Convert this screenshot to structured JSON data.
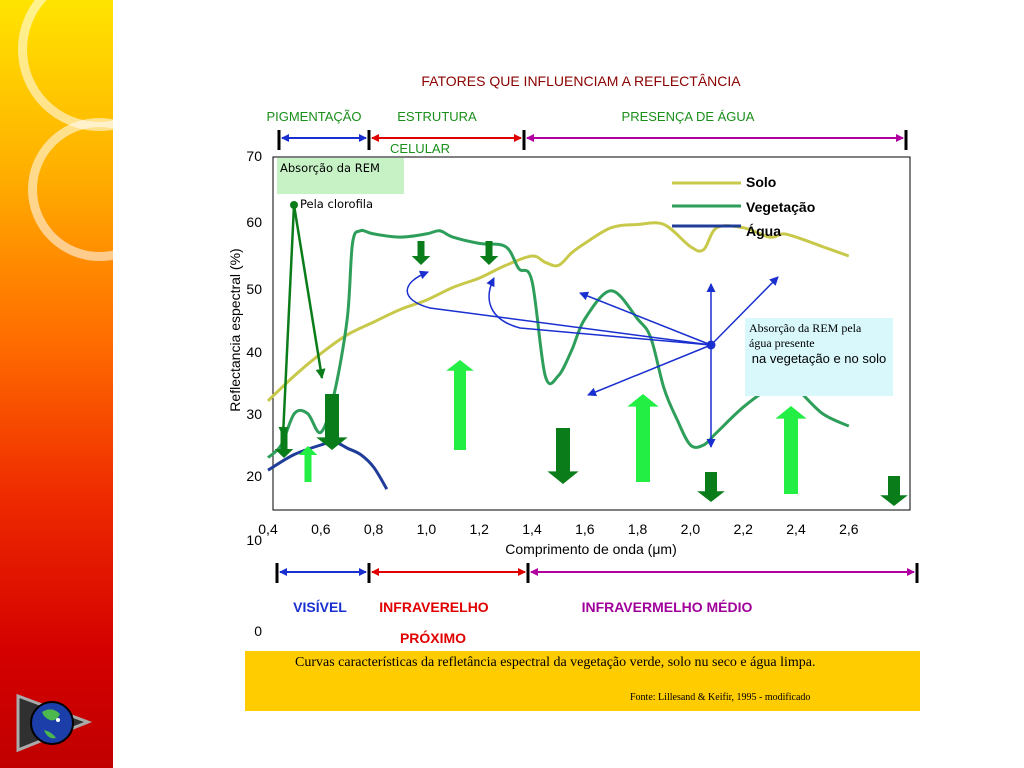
{
  "slide": {
    "title": "FATORES QUE INFLUENCIAM A REFLECTÂNCIA",
    "factors": {
      "pigmentation": "PIGMENTAÇÃO",
      "structure_line1": "ESTRUTURA",
      "structure_line2": "CELULAR",
      "water": "PRESENÇA DE ÁGUA"
    },
    "regions": {
      "visible": "VISÍVEL",
      "nir_line1": "INFRAVERELHO",
      "nir_line2": "PRÓXIMO",
      "mir": "INFRAVERMELHO MÉDIO"
    },
    "annotations": {
      "chlorophyll_line1": "Absorção da REM",
      "chlorophyll_line2": "Pela clorofila",
      "water_line1": "Absorção da REM  pela",
      "water_line2": "água presente",
      "water_line3": "na vegetação e no solo"
    },
    "caption": "Curvas características da refletância espectral da vegetação verde, solo nu seco e água limpa.",
    "source": "Fonte: Lillesand & Keifir, 1995 - modificado",
    "colors": {
      "soil": "#c8c84a",
      "vegetation": "#2e9e5b",
      "water": "#1f3c99",
      "visible": "#1a2fd0",
      "nir": "#e00000",
      "mir": "#b000a0",
      "arrow_dark": "#0a7d1a",
      "arrow_light": "#22ee44"
    }
  },
  "chart_data": {
    "type": "line",
    "title": "",
    "xlabel": "Comprimento de onda (μm)",
    "ylabel": "Reflectancia espectral (%)",
    "x_ticks": [
      "0,4",
      "0,6",
      "0,8",
      "1,0",
      "1,2",
      "1,4",
      "1,6",
      "1,8",
      "2,0",
      "2,2",
      "2,4",
      "2,6"
    ],
    "y_ticks": [
      "0",
      "10",
      "20",
      "30",
      "40",
      "50",
      "60",
      "70"
    ],
    "xlim": [
      0.4,
      2.6
    ],
    "ylim": [
      0,
      70
    ],
    "series": [
      {
        "name": "Solo",
        "x": [
          0.4,
          0.5,
          0.6,
          0.7,
          0.8,
          0.9,
          1.0,
          1.1,
          1.2,
          1.3,
          1.4,
          1.45,
          1.5,
          1.55,
          1.6,
          1.7,
          1.8,
          1.9,
          2.0,
          2.05,
          2.1,
          2.2,
          2.3,
          2.35,
          2.4,
          2.5,
          2.6
        ],
        "y": [
          27,
          31,
          34.5,
          37.5,
          39.5,
          41.5,
          43,
          45,
          46.5,
          48.5,
          50,
          49,
          48.5,
          50.5,
          52,
          54.5,
          55,
          55,
          51.5,
          51,
          54.5,
          54.5,
          53,
          53.5,
          53,
          51.5,
          50
        ]
      },
      {
        "name": "Vegetação",
        "x": [
          0.4,
          0.45,
          0.5,
          0.55,
          0.6,
          0.65,
          0.7,
          0.72,
          0.75,
          0.8,
          0.9,
          1.0,
          1.05,
          1.1,
          1.2,
          1.3,
          1.35,
          1.4,
          1.45,
          1.5,
          1.55,
          1.6,
          1.7,
          1.8,
          1.85,
          1.9,
          1.95,
          2.0,
          2.05,
          2.1,
          2.2,
          2.3,
          2.35,
          2.4,
          2.5,
          2.6
        ],
        "y": [
          18,
          20,
          25,
          25,
          22,
          28,
          40,
          52,
          54,
          53.5,
          53,
          53.5,
          54,
          53,
          52,
          51.5,
          48,
          46,
          31,
          31,
          35,
          40,
          44.5,
          40,
          37,
          29,
          24,
          20,
          20,
          22,
          26,
          29,
          29.5,
          29,
          25,
          23
        ]
      },
      {
        "name": "Água",
        "x": [
          0.4,
          0.5,
          0.6,
          0.65,
          0.7,
          0.75,
          0.8,
          0.85
        ],
        "y": [
          16,
          18.5,
          20,
          20.5,
          19.5,
          18.5,
          16.5,
          13
        ]
      }
    ],
    "legend": "top-right",
    "grid": false
  }
}
